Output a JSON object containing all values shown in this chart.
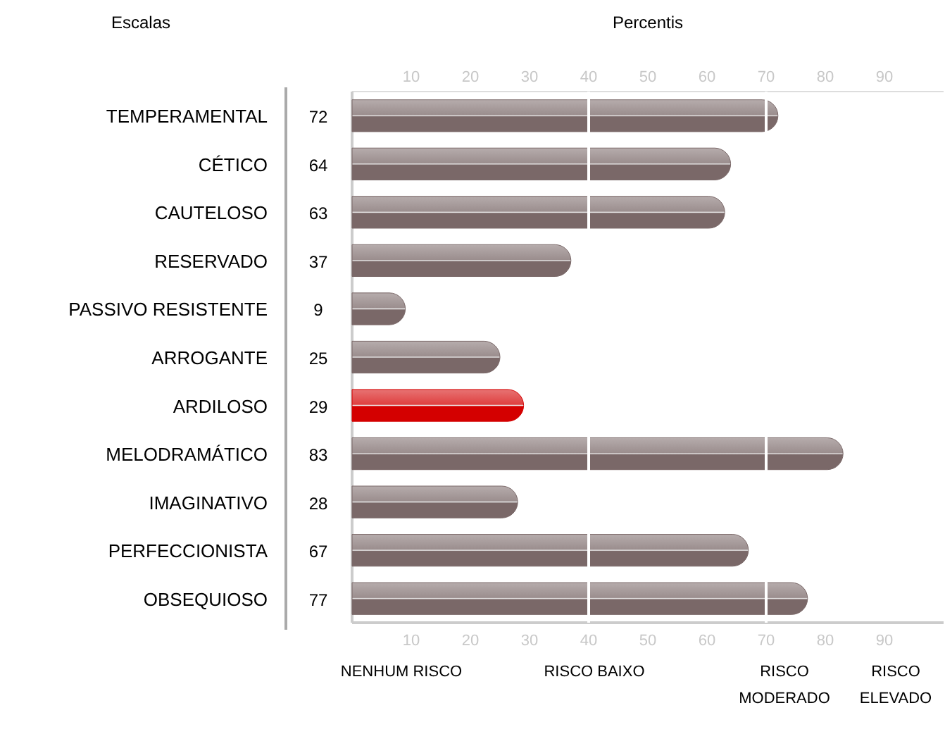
{
  "chart_data": {
    "type": "bar",
    "orientation": "horizontal",
    "xlabel": "Percentis",
    "ylabel": "Escalas",
    "categories": [
      "TEMPERAMENTAL",
      "CÉTICO",
      "CAUTELOSO",
      "RESERVADO",
      "PASSIVO RESISTENTE",
      "ARROGANTE",
      "ARDILOSO",
      "MELODRAMÁTICO",
      "IMAGINATIVO",
      "PERFECCIONISTA",
      "OBSEQUIOSO"
    ],
    "values": [
      72,
      64,
      63,
      37,
      9,
      25,
      29,
      83,
      28,
      67,
      77
    ],
    "colors": [
      "#7a6868",
      "#7a6868",
      "#7a6868",
      "#7a6868",
      "#7a6868",
      "#7a6868",
      "#d40000",
      "#7a6868",
      "#7a6868",
      "#7a6868",
      "#7a6868"
    ],
    "data_labels": true,
    "xlim": [
      0,
      100
    ],
    "xticks": [
      10,
      20,
      30,
      40,
      50,
      60,
      70,
      80,
      90
    ],
    "x2lim": [
      0,
      100
    ],
    "x2ticks": [
      10,
      20,
      30,
      40,
      50,
      60,
      70,
      80,
      90
    ],
    "ref_lines": [
      {
        "axis": "x",
        "value": 40,
        "color": "#ffffff"
      },
      {
        "axis": "x",
        "value": 70,
        "color": "#ffffff"
      }
    ],
    "annotations": [
      "NENHUM RISCO",
      "RISCO BAIXO",
      "RISCO MODERADO",
      "RISCO ELEVADO"
    ],
    "grid": false
  }
}
